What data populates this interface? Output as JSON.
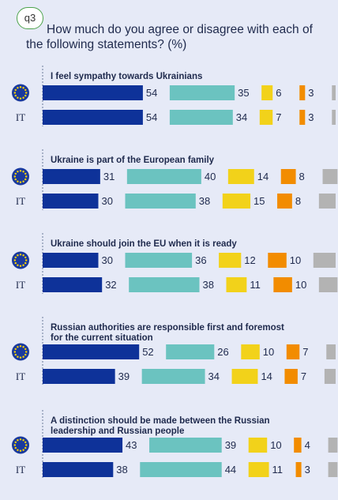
{
  "question_badge": "q3",
  "title": "How much do you agree or disagree with each of the following statements? (%)",
  "colors": {
    "background": "#e6eaf7",
    "totally_agree": "#0e3299",
    "tend_to_agree": "#6bc3c0",
    "tend_to_disagree": "#f2d21a",
    "totally_disagree": "#f28c00",
    "dont_know": "#b3b3b3",
    "eu_circle": "#1a3a9e",
    "eu_star": "#ffd400"
  },
  "chart_data": {
    "type": "bar",
    "orientation": "horizontal-stacked",
    "scale": [
      0,
      100
    ],
    "segments_order": [
      "totally_agree",
      "tend_to_agree",
      "tend_to_disagree",
      "totally_disagree",
      "dont_know"
    ],
    "row_labels": {
      "eu": "EU flag",
      "it": "IT"
    },
    "groups": [
      {
        "title": "I feel sympathy towards Ukrainians",
        "rows": [
          {
            "label": "EU flag",
            "values": [
              54,
              35,
              6,
              3,
              2
            ]
          },
          {
            "label": "IT",
            "values": [
              54,
              34,
              7,
              3,
              2
            ]
          }
        ]
      },
      {
        "title": "Ukraine is part of the European family",
        "rows": [
          {
            "label": "EU flag",
            "values": [
              31,
              40,
              14,
              8,
              8
            ]
          },
          {
            "label": "IT",
            "values": [
              30,
              38,
              15,
              8,
              9
            ]
          }
        ]
      },
      {
        "title": "Ukraine should join the EU when it is ready",
        "rows": [
          {
            "label": "EU flag",
            "values": [
              30,
              36,
              12,
              10,
              12
            ]
          },
          {
            "label": "IT",
            "values": [
              32,
              38,
              11,
              10,
              10
            ]
          }
        ]
      },
      {
        "title": "Russian authorities are responsible first and foremost for the current situation",
        "rows": [
          {
            "label": "EU flag",
            "values": [
              52,
              26,
              10,
              7,
              5
            ]
          },
          {
            "label": "IT",
            "values": [
              39,
              34,
              14,
              7,
              6
            ]
          }
        ]
      },
      {
        "title": "A distinction should be made between the Russian leadership and Russian people",
        "rows": [
          {
            "label": "EU flag",
            "values": [
              43,
              39,
              10,
              4,
              5
            ]
          },
          {
            "label": "IT",
            "values": [
              38,
              44,
              11,
              3,
              5
            ]
          }
        ]
      }
    ]
  }
}
